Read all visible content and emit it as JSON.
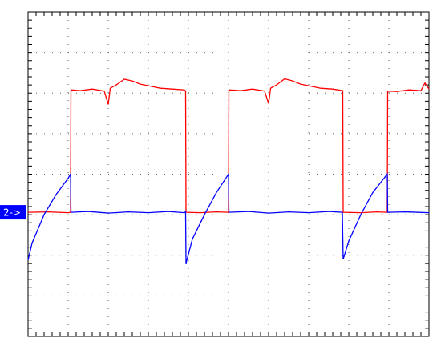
{
  "chart_data": {
    "type": "line",
    "xlim": [
      0,
      10
    ],
    "ylim": [
      -4,
      4
    ],
    "xticks": [
      0,
      1,
      2,
      3,
      4,
      5,
      6,
      7,
      8,
      9,
      10
    ],
    "yticks": [
      -4,
      -3,
      -2,
      -1,
      0,
      1,
      2,
      3,
      4
    ],
    "grid": true,
    "minor_ticks_per_division": 5,
    "series": [
      {
        "color": "#ff0000",
        "x": [
          0,
          0.5,
          1.0,
          1.06,
          1.07,
          1.3,
          1.6,
          1.9,
          2.0,
          2.05,
          2.2,
          2.4,
          2.6,
          2.8,
          3.0,
          3.3,
          3.6,
          3.9,
          3.93,
          3.94,
          4.3,
          4.7,
          5.0,
          5.01,
          5.3,
          5.6,
          5.9,
          6.0,
          6.05,
          6.2,
          6.4,
          6.6,
          6.8,
          7.0,
          7.3,
          7.6,
          7.85,
          7.86,
          8.3,
          8.7,
          8.96,
          8.97,
          9.2,
          9.5,
          9.8,
          9.9,
          10
        ],
        "values": [
          -0.94,
          -0.93,
          -0.95,
          -0.94,
          2.08,
          2.06,
          2.1,
          2.05,
          1.72,
          2.12,
          2.2,
          2.34,
          2.3,
          2.22,
          2.18,
          2.12,
          2.1,
          2.08,
          2.05,
          -0.94,
          -0.95,
          -0.93,
          -0.94,
          2.08,
          2.06,
          2.1,
          2.05,
          1.74,
          2.12,
          2.2,
          2.35,
          2.3,
          2.22,
          2.18,
          2.12,
          2.1,
          2.06,
          -0.94,
          -0.95,
          -0.93,
          -0.94,
          2.05,
          2.04,
          2.08,
          2.06,
          2.25,
          2.1
        ]
      },
      {
        "color": "#0000ff",
        "x": [
          0,
          0.1,
          0.4,
          0.7,
          1.0,
          1.06,
          1.07,
          1.5,
          2.0,
          2.5,
          3.0,
          3.5,
          3.9,
          3.93,
          3.94,
          4.1,
          4.4,
          4.7,
          5.0,
          5.01,
          5.5,
          6.0,
          6.5,
          7.0,
          7.5,
          7.84,
          7.86,
          8.0,
          8.3,
          8.6,
          8.96,
          8.97,
          9.4,
          10
        ],
        "values": [
          -2.12,
          -1.7,
          -1.0,
          -0.5,
          -0.1,
          0.0,
          -0.94,
          -0.92,
          -0.96,
          -0.93,
          -0.95,
          -0.92,
          -0.95,
          -0.93,
          -2.2,
          -1.6,
          -1.0,
          -0.45,
          0.0,
          -0.94,
          -0.92,
          -0.96,
          -0.93,
          -0.95,
          -0.92,
          -0.94,
          -2.1,
          -1.65,
          -1.0,
          -0.45,
          0.0,
          -0.94,
          -0.93,
          -0.95
        ]
      }
    ],
    "reference_marker": {
      "label": "2->",
      "level": -0.94,
      "color": "#0000ff"
    }
  }
}
